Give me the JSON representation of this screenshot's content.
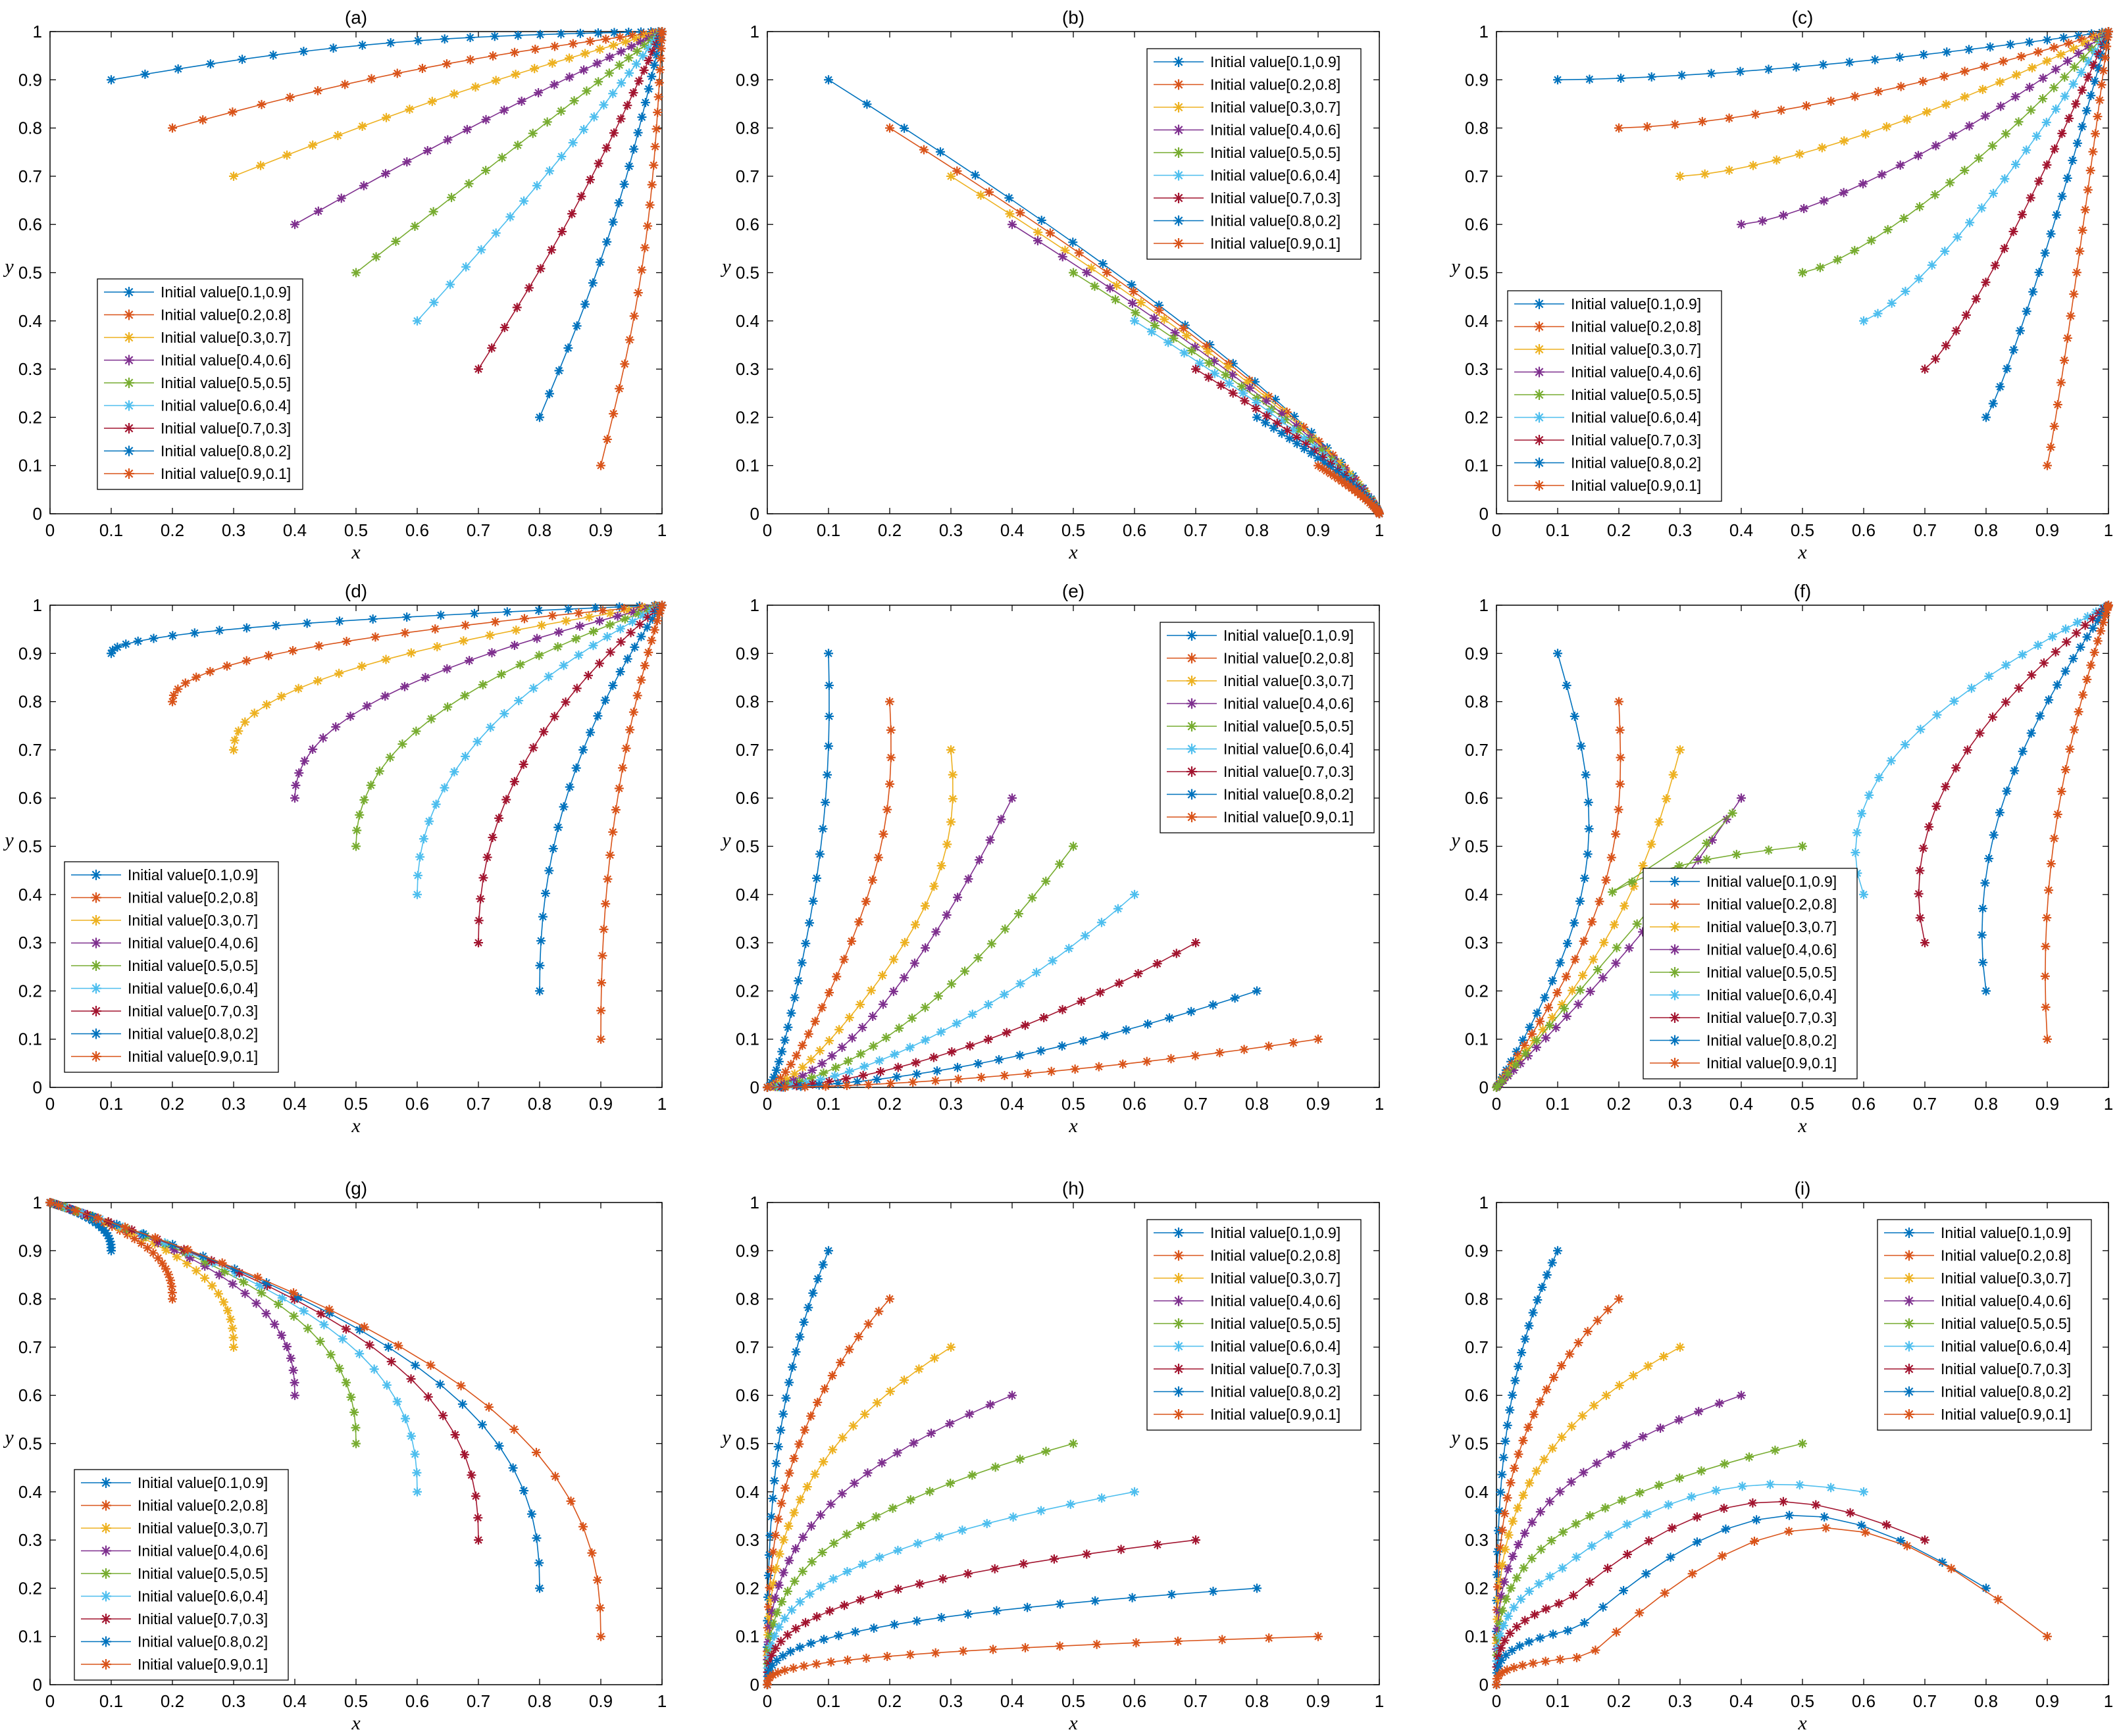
{
  "figure": {
    "description_free": true
  },
  "legend_labels": [
    "Initial value[0.1,0.9]",
    "Initial value[0.2,0.8]",
    "Initial value[0.3,0.7]",
    "Initial value[0.4,0.6]",
    "Initial value[0.5,0.5]",
    "Initial value[0.6,0.4]",
    "Initial value[0.7,0.3]",
    "Initial value[0.8,0.2]",
    "Initial value[0.9,0.1]"
  ],
  "series_colors": [
    "#0072BD",
    "#D95319",
    "#EDB120",
    "#7E2F8E",
    "#77AC30",
    "#4DBEEE",
    "#A2142F",
    "#0072BD",
    "#D95319"
  ],
  "initial_values": [
    [
      0.1,
      0.9
    ],
    [
      0.2,
      0.8
    ],
    [
      0.3,
      0.7
    ],
    [
      0.4,
      0.6
    ],
    [
      0.5,
      0.5
    ],
    [
      0.6,
      0.4
    ],
    [
      0.7,
      0.3
    ],
    [
      0.8,
      0.2
    ],
    [
      0.9,
      0.1
    ]
  ],
  "chart_data": [
    {
      "id": "a",
      "type": "line",
      "title": "(a)",
      "xlabel": "x",
      "ylabel": "y",
      "xlim": [
        0,
        1
      ],
      "ylim": [
        0,
        1
      ],
      "xticks": [
        "0",
        "0.1",
        "0.2",
        "0.3",
        "0.4",
        "0.5",
        "0.6",
        "0.7",
        "0.8",
        "0.9",
        "1"
      ],
      "yticks": [
        "0",
        "0.1",
        "0.2",
        "0.3",
        "0.4",
        "0.5",
        "0.6",
        "0.7",
        "0.8",
        "0.9",
        "1"
      ],
      "legend_position": "bottom-left",
      "endpoint": [
        1,
        1
      ],
      "curvature": 0.5
    },
    {
      "id": "b",
      "type": "line",
      "title": "(b)",
      "xlabel": "x",
      "ylabel": "y",
      "xlim": [
        0,
        1
      ],
      "ylim": [
        0,
        1
      ],
      "xticks": [
        "0",
        "0.1",
        "0.2",
        "0.3",
        "0.4",
        "0.5",
        "0.6",
        "0.7",
        "0.8",
        "0.9",
        "1"
      ],
      "yticks": [
        "0",
        "0.1",
        "0.2",
        "0.3",
        "0.4",
        "0.5",
        "0.6",
        "0.7",
        "0.8",
        "0.9",
        "1"
      ],
      "legend_position": "top-right",
      "endpoint": [
        1,
        0
      ],
      "curvature": 0.5
    },
    {
      "id": "c",
      "type": "line",
      "title": "(c)",
      "xlabel": "x",
      "ylabel": "y",
      "xlim": [
        0,
        1
      ],
      "ylim": [
        0,
        1
      ],
      "xticks": [
        "0",
        "0.1",
        "0.2",
        "0.3",
        "0.4",
        "0.5",
        "0.6",
        "0.7",
        "0.8",
        "0.9",
        "1"
      ],
      "yticks": [
        "0",
        "0.1",
        "0.2",
        "0.3",
        "0.4",
        "0.5",
        "0.6",
        "0.7",
        "0.8",
        "0.9",
        "1"
      ],
      "legend_position": "bottom-left",
      "endpoint": [
        1,
        1
      ],
      "curvature": 0.8
    },
    {
      "id": "d",
      "type": "line",
      "title": "(d)",
      "xlabel": "x",
      "ylabel": "y",
      "xlim": [
        0,
        1
      ],
      "ylim": [
        0,
        1
      ],
      "xticks": [
        "0",
        "0.1",
        "0.2",
        "0.3",
        "0.4",
        "0.5",
        "0.6",
        "0.7",
        "0.8",
        "0.9",
        "1"
      ],
      "yticks": [
        "0",
        "0.1",
        "0.2",
        "0.3",
        "0.4",
        "0.5",
        "0.6",
        "0.7",
        "0.8",
        "0.9",
        "1"
      ],
      "legend_position": "bottom-left",
      "endpoint": [
        1,
        1
      ],
      "curvature": 3
    },
    {
      "id": "e",
      "type": "line",
      "title": "(e)",
      "xlabel": "x",
      "ylabel": "y",
      "xlim": [
        0,
        1
      ],
      "ylim": [
        0,
        1
      ],
      "xticks": [
        "0",
        "0.1",
        "0.2",
        "0.3",
        "0.4",
        "0.5",
        "0.6",
        "0.7",
        "0.8",
        "0.9",
        "1"
      ],
      "yticks": [
        "0",
        "0.1",
        "0.2",
        "0.3",
        "0.4",
        "0.5",
        "0.6",
        "0.7",
        "0.8",
        "0.9",
        "1"
      ],
      "legend_position": "top-right",
      "endpoint": [
        0,
        0
      ],
      "curvature": 1.5
    },
    {
      "id": "f",
      "type": "line",
      "title": "(f)",
      "xlabel": "x",
      "ylabel": "y",
      "xlim": [
        0,
        1
      ],
      "ylim": [
        0,
        1
      ],
      "xticks": [
        "0",
        "0.1",
        "0.2",
        "0.3",
        "0.4",
        "0.5",
        "0.6",
        "0.7",
        "0.8",
        "0.9",
        "1"
      ],
      "yticks": [
        "0",
        "0.1",
        "0.2",
        "0.3",
        "0.4",
        "0.5",
        "0.6",
        "0.7",
        "0.8",
        "0.9",
        "1"
      ],
      "legend_position": "bottom-center",
      "endpoint": "mixed",
      "curvature": 1.5
    },
    {
      "id": "g",
      "type": "line",
      "title": "(g)",
      "xlabel": "x",
      "ylabel": "y",
      "xlim": [
        0,
        1
      ],
      "ylim": [
        0,
        1
      ],
      "xticks": [
        "0",
        "0.1",
        "0.2",
        "0.3",
        "0.4",
        "0.5",
        "0.6",
        "0.7",
        "0.8",
        "0.9",
        "1"
      ],
      "yticks": [
        "0",
        "0.1",
        "0.2",
        "0.3",
        "0.4",
        "0.5",
        "0.6",
        "0.7",
        "0.8",
        "0.9",
        "1"
      ],
      "legend_position": "bottom-left",
      "endpoint": [
        0,
        1
      ],
      "curvature": 3
    },
    {
      "id": "h",
      "type": "line",
      "title": "(h)",
      "xlabel": "x",
      "ylabel": "y",
      "xlim": [
        0,
        1
      ],
      "ylim": [
        0,
        1
      ],
      "xticks": [
        "0",
        "0.1",
        "0.2",
        "0.3",
        "0.4",
        "0.5",
        "0.6",
        "0.7",
        "0.8",
        "0.9",
        "1"
      ],
      "yticks": [
        "0",
        "0.1",
        "0.2",
        "0.3",
        "0.4",
        "0.5",
        "0.6",
        "0.7",
        "0.8",
        "0.9",
        "1"
      ],
      "legend_position": "top-right",
      "endpoint": [
        0,
        0
      ],
      "curvature": 3
    },
    {
      "id": "i",
      "type": "line",
      "title": "(i)",
      "xlabel": "x",
      "ylabel": "y",
      "xlim": [
        0,
        1
      ],
      "ylim": [
        0,
        1
      ],
      "xticks": [
        "0",
        "0.1",
        "0.2",
        "0.3",
        "0.4",
        "0.5",
        "0.6",
        "0.7",
        "0.8",
        "0.9",
        "1"
      ],
      "yticks": [
        "0",
        "0.1",
        "0.2",
        "0.3",
        "0.4",
        "0.5",
        "0.6",
        "0.7",
        "0.8",
        "0.9",
        "1"
      ],
      "legend_position": "top-right",
      "endpoint": [
        0,
        0
      ],
      "curvature": "arch"
    }
  ]
}
